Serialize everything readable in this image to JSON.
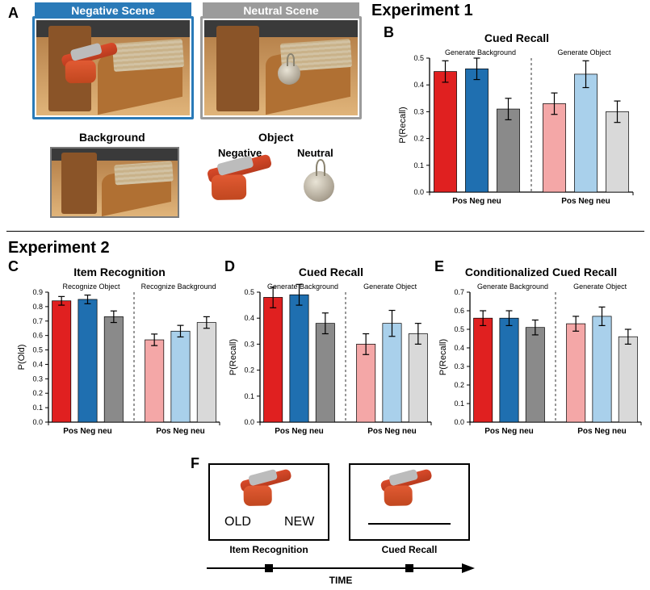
{
  "letters": {
    "A": "A",
    "B": "B",
    "C": "C",
    "D": "D",
    "E": "E",
    "F": "F"
  },
  "headings": {
    "exp1": "Experiment 1",
    "exp2": "Experiment 2"
  },
  "panelA": {
    "neg_title": "Negative Scene",
    "neu_title": "Neutral Scene",
    "bg_label": "Background",
    "obj_label": "Object",
    "neg_sub": "Negative",
    "neu_sub": "Neutral",
    "neg_border": "#2a7ab8",
    "neu_border": "#9b9b9b"
  },
  "colors": {
    "red": "#e02020",
    "blue": "#1f6fb0",
    "gray": "#8a8a8a",
    "red_l": "#f4a7a7",
    "blue_l": "#a9d0eb",
    "gray_l": "#d9d9d9",
    "axis": "#000000",
    "bg": "#ffffff"
  },
  "chartB": {
    "title": "Cued Recall",
    "sub_left": "Generate Background",
    "sub_right": "Generate Object",
    "ylabel": "P(Recall)",
    "ylim": [
      0,
      0.5
    ],
    "ticks": [
      0,
      0.1,
      0.2,
      0.3,
      0.4,
      0.5
    ],
    "xticks": [
      "Pos",
      "Neg",
      "neu"
    ],
    "groups": [
      {
        "c": [
          "red",
          "blue",
          "gray"
        ],
        "v": [
          0.45,
          0.46,
          0.31
        ],
        "e": [
          0.04,
          0.04,
          0.04
        ]
      },
      {
        "c": [
          "red_l",
          "blue_l",
          "gray_l"
        ],
        "v": [
          0.33,
          0.44,
          0.3
        ],
        "e": [
          0.04,
          0.05,
          0.04
        ]
      }
    ]
  },
  "chartC": {
    "title": "Item Recognition",
    "sub_left": "Recognize Object",
    "sub_right": "Recognize Background",
    "ylabel": "P(Old)",
    "ylim": [
      0,
      0.9
    ],
    "ticks": [
      0,
      0.1,
      0.2,
      0.3,
      0.4,
      0.5,
      0.6,
      0.7,
      0.8,
      0.9
    ],
    "xticks": [
      "Pos",
      "Neg",
      "neu"
    ],
    "groups": [
      {
        "c": [
          "red",
          "blue",
          "gray"
        ],
        "v": [
          0.84,
          0.85,
          0.73
        ],
        "e": [
          0.03,
          0.03,
          0.04
        ]
      },
      {
        "c": [
          "red_l",
          "blue_l",
          "gray_l"
        ],
        "v": [
          0.57,
          0.63,
          0.69
        ],
        "e": [
          0.04,
          0.04,
          0.04
        ]
      }
    ]
  },
  "chartD": {
    "title": "Cued Recall",
    "sub_left": "Generate Background",
    "sub_right": "Generate Object",
    "ylabel": "P(Recall)",
    "ylim": [
      0,
      0.5
    ],
    "ticks": [
      0,
      0.1,
      0.2,
      0.3,
      0.4,
      0.5
    ],
    "xticks": [
      "Pos",
      "Neg",
      "neu"
    ],
    "groups": [
      {
        "c": [
          "red",
          "blue",
          "gray"
        ],
        "v": [
          0.48,
          0.49,
          0.38
        ],
        "e": [
          0.04,
          0.04,
          0.04
        ]
      },
      {
        "c": [
          "red_l",
          "blue_l",
          "gray_l"
        ],
        "v": [
          0.3,
          0.38,
          0.34
        ],
        "e": [
          0.04,
          0.05,
          0.04
        ]
      }
    ]
  },
  "chartE": {
    "title": "Conditionalized Cued Recall",
    "sub_left": "Generate Background",
    "sub_right": "Generate Object",
    "ylabel": "P(Recall)",
    "ylim": [
      0,
      0.7
    ],
    "ticks": [
      0,
      0.1,
      0.2,
      0.3,
      0.4,
      0.5,
      0.6,
      0.7
    ],
    "xticks": [
      "Pos",
      "Neg",
      "neu"
    ],
    "groups": [
      {
        "c": [
          "red",
          "blue",
          "gray"
        ],
        "v": [
          0.56,
          0.56,
          0.51
        ],
        "e": [
          0.04,
          0.04,
          0.04
        ]
      },
      {
        "c": [
          "red_l",
          "blue_l",
          "gray_l"
        ],
        "v": [
          0.53,
          0.57,
          0.46
        ],
        "e": [
          0.04,
          0.05,
          0.04
        ]
      }
    ]
  },
  "panelF": {
    "old": "OLD",
    "new": "NEW",
    "item": "Item Recognition",
    "cued": "Cued Recall",
    "time": "TIME"
  },
  "style": {
    "bar_width": 0.72,
    "err_cap": 4,
    "title_fontsize": 13,
    "axis_fontsize": 10
  }
}
